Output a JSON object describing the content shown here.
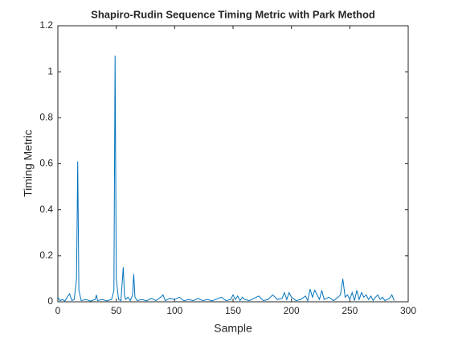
{
  "chart_data": {
    "type": "line",
    "title": "Shapiro-Rudin Sequence Timing Metric with Park Method",
    "xlabel": "Sample",
    "ylabel": "Timing Metric",
    "xlim": [
      0,
      300
    ],
    "xticks": [
      0,
      50,
      100,
      150,
      200,
      250,
      300
    ],
    "ylim": [
      0,
      1.2
    ],
    "yticks": [
      0,
      0.2,
      0.4,
      0.6,
      0.8,
      1,
      1.2
    ],
    "series": [
      {
        "color": "#0072bd",
        "x": [
          0,
          2,
          4,
          6,
          8,
          10,
          12,
          14,
          16,
          17,
          18,
          20,
          24,
          28,
          32,
          33,
          34,
          38,
          42,
          46,
          48,
          49,
          50,
          52,
          54,
          56,
          57,
          58,
          60,
          62,
          64,
          65,
          66,
          68,
          72,
          76,
          80,
          84,
          88,
          90,
          92,
          96,
          100,
          104,
          108,
          112,
          116,
          120,
          124,
          128,
          132,
          136,
          140,
          144,
          148,
          150,
          152,
          154,
          156,
          158,
          160,
          164,
          168,
          172,
          176,
          180,
          184,
          188,
          192,
          194,
          196,
          198,
          200,
          204,
          208,
          212,
          214,
          216,
          218,
          220,
          224,
          226,
          228,
          232,
          236,
          240,
          242,
          244,
          246,
          248,
          250,
          252,
          254,
          256,
          258,
          260,
          262,
          264,
          266,
          268,
          270,
          272,
          274,
          276,
          278,
          280,
          284,
          286,
          288
        ],
        "values": [
          0.02,
          0.005,
          0.01,
          0.003,
          0.02,
          0.035,
          0.005,
          0.01,
          0.1,
          0.61,
          0.05,
          0.005,
          0.01,
          0.003,
          0.01,
          0.03,
          0.005,
          0.01,
          0.004,
          0.01,
          0.05,
          1.07,
          0.1,
          0.01,
          0.005,
          0.15,
          0.03,
          0.01,
          0.02,
          0.005,
          0.03,
          0.12,
          0.02,
          0.005,
          0.01,
          0.004,
          0.015,
          0.005,
          0.02,
          0.03,
          0.005,
          0.015,
          0.01,
          0.02,
          0.004,
          0.01,
          0.005,
          0.015,
          0.005,
          0.01,
          0.004,
          0.012,
          0.02,
          0.005,
          0.01,
          0.03,
          0.01,
          0.025,
          0.005,
          0.02,
          0.01,
          0.005,
          0.015,
          0.025,
          0.005,
          0.01,
          0.03,
          0.01,
          0.015,
          0.04,
          0.01,
          0.04,
          0.02,
          0.005,
          0.01,
          0.025,
          0.005,
          0.055,
          0.02,
          0.05,
          0.01,
          0.05,
          0.01,
          0.02,
          0.005,
          0.02,
          0.03,
          0.1,
          0.02,
          0.03,
          0.01,
          0.04,
          0.005,
          0.05,
          0.01,
          0.04,
          0.02,
          0.03,
          0.01,
          0.025,
          0.005,
          0.02,
          0.03,
          0.01,
          0.02,
          0.005,
          0.015,
          0.03,
          0.005
        ]
      }
    ]
  }
}
